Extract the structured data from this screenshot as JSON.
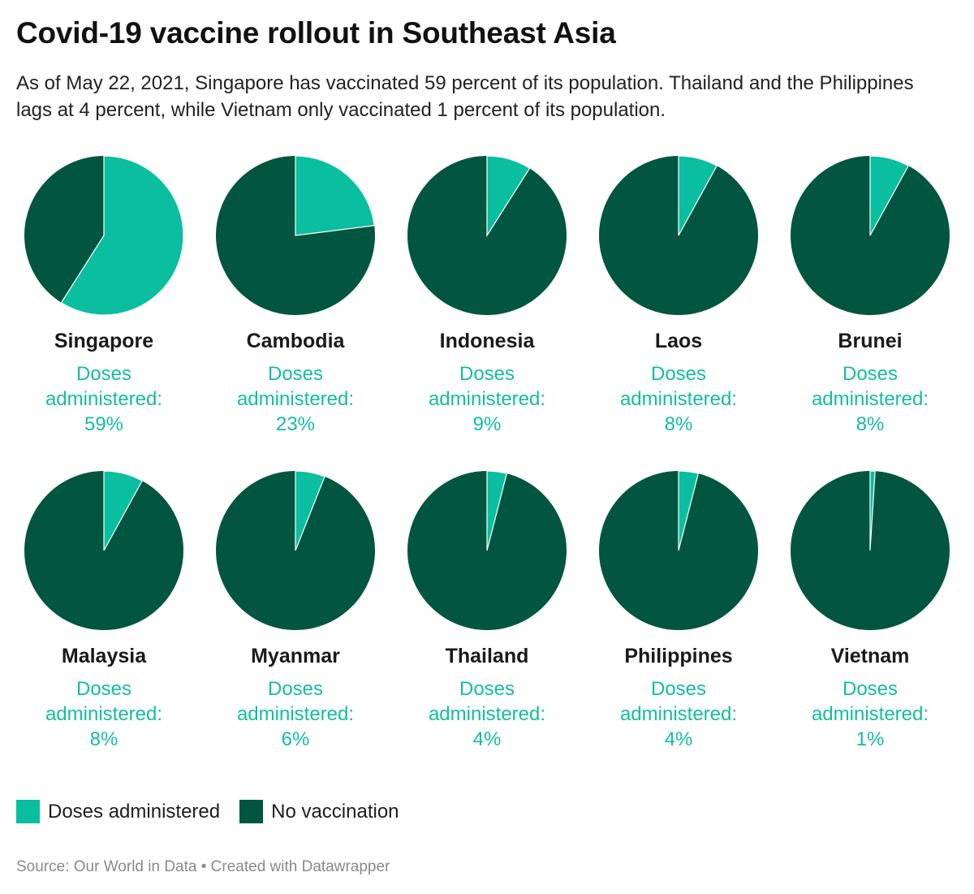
{
  "header": {
    "title": "Covid-19 vaccine rollout in Southeast Asia",
    "subtitle": "As of May 22, 2021, Singapore has vaccinated 59 percent of its population. Thailand and the Philippines lags at 4 percent, while Vietnam only vaccinated 1 percent of its population."
  },
  "colors": {
    "doses": "#0abf9f",
    "none": "#025640"
  },
  "metric_label_line1": "Doses",
  "metric_label_line2": "administered:",
  "chart_data": {
    "type": "pie",
    "series": [
      "Doses administered",
      "No vaccination"
    ],
    "pies": [
      {
        "country": "Singapore",
        "doses": 59,
        "none": 41,
        "label": "59%"
      },
      {
        "country": "Cambodia",
        "doses": 23,
        "none": 77,
        "label": "23%"
      },
      {
        "country": "Indonesia",
        "doses": 9,
        "none": 91,
        "label": "9%"
      },
      {
        "country": "Laos",
        "doses": 8,
        "none": 92,
        "label": "8%"
      },
      {
        "country": "Brunei",
        "doses": 8,
        "none": 92,
        "label": "8%"
      },
      {
        "country": "Malaysia",
        "doses": 8,
        "none": 92,
        "label": "8%"
      },
      {
        "country": "Myanmar",
        "doses": 6,
        "none": 94,
        "label": "6%"
      },
      {
        "country": "Thailand",
        "doses": 4,
        "none": 96,
        "label": "4%"
      },
      {
        "country": "Philippines",
        "doses": 4,
        "none": 96,
        "label": "4%"
      },
      {
        "country": "Vietnam",
        "doses": 1,
        "none": 99,
        "label": "1%"
      }
    ],
    "legend_placement": "bottom-left"
  },
  "legend": {
    "items": [
      {
        "label": "Doses administered"
      },
      {
        "label": "No vaccination"
      }
    ]
  },
  "footer": {
    "source": "Source: Our World in Data • Created with Datawrapper"
  }
}
